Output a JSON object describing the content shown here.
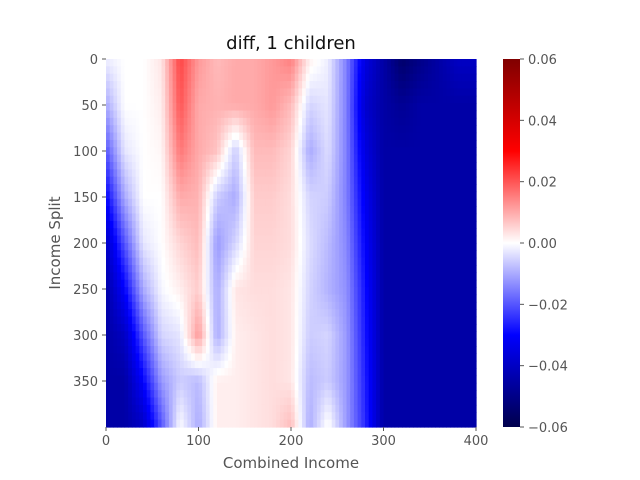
{
  "chart_data": {
    "type": "heatmap",
    "title": "diff, 1 children",
    "xlabel": "Combined Income",
    "ylabel": "Income Split",
    "x_ticks": [
      "0",
      "100",
      "200",
      "300",
      "400"
    ],
    "x_tick_values": [
      0,
      100,
      200,
      300,
      400
    ],
    "y_ticks": [
      "0",
      "50",
      "100",
      "150",
      "200",
      "250",
      "300",
      "350"
    ],
    "y_tick_values": [
      0,
      50,
      100,
      150,
      200,
      250,
      300,
      350
    ],
    "x_range": [
      0,
      400
    ],
    "y_range": [
      0,
      400
    ],
    "y_inverted": true,
    "colormap": "seismic",
    "colormap_stops": [
      "#00004c",
      "#0000ff",
      "#ffffff",
      "#ff0000",
      "#800000"
    ],
    "color_range": [
      -0.06,
      0.06
    ],
    "colorbar_ticks": [
      "0.06",
      "0.04",
      "0.02",
      "0.00",
      "−0.02",
      "−0.04",
      "−0.06"
    ],
    "colorbar_tick_values": [
      0.06,
      0.04,
      0.02,
      0.0,
      -0.02,
      -0.04,
      -0.06
    ],
    "x_centers": [
      0,
      20,
      40,
      60,
      80,
      100,
      120,
      140,
      160,
      180,
      200,
      220,
      240,
      260,
      280,
      300,
      320,
      340,
      360,
      380,
      400
    ],
    "y_centers": [
      0,
      50,
      100,
      150,
      200,
      250,
      300,
      350,
      400
    ],
    "values": [
      [
        -0.002,
        0.0,
        0.0,
        0.003,
        0.022,
        0.012,
        0.008,
        0.01,
        0.01,
        0.012,
        0.015,
        0.002,
        -0.002,
        -0.015,
        -0.035,
        -0.045,
        -0.055,
        -0.05,
        -0.045,
        -0.04,
        -0.04
      ],
      [
        -0.01,
        0.0,
        0.0,
        0.002,
        0.02,
        0.01,
        0.009,
        0.01,
        0.01,
        0.012,
        0.008,
        -0.005,
        -0.003,
        -0.015,
        -0.038,
        -0.045,
        -0.048,
        -0.045,
        -0.045,
        -0.045,
        -0.045
      ],
      [
        -0.02,
        -0.003,
        0.0,
        0.001,
        0.016,
        0.01,
        0.007,
        -0.006,
        0.008,
        0.008,
        0.005,
        -0.01,
        -0.004,
        -0.015,
        -0.035,
        -0.045,
        -0.045,
        -0.045,
        -0.045,
        -0.045,
        -0.045
      ],
      [
        -0.03,
        -0.01,
        0.0,
        0.0,
        0.01,
        0.009,
        -0.006,
        -0.01,
        0.006,
        0.006,
        0.004,
        -0.005,
        -0.006,
        -0.015,
        -0.032,
        -0.045,
        -0.045,
        -0.045,
        -0.045,
        -0.045,
        -0.045
      ],
      [
        -0.04,
        -0.02,
        -0.003,
        0.0,
        0.005,
        0.008,
        -0.012,
        -0.005,
        0.005,
        0.005,
        0.004,
        -0.004,
        -0.008,
        -0.014,
        -0.03,
        -0.045,
        -0.045,
        -0.045,
        -0.045,
        -0.045,
        -0.045
      ],
      [
        -0.045,
        -0.03,
        -0.01,
        -0.001,
        0.002,
        0.006,
        -0.01,
        0.003,
        0.004,
        0.004,
        0.003,
        -0.005,
        -0.009,
        -0.013,
        -0.028,
        -0.045,
        -0.045,
        -0.045,
        -0.045,
        -0.045,
        -0.045
      ],
      [
        -0.045,
        -0.04,
        -0.02,
        -0.005,
        -0.003,
        0.012,
        -0.01,
        0.002,
        0.003,
        0.004,
        0.003,
        -0.006,
        -0.005,
        -0.012,
        -0.027,
        -0.045,
        -0.045,
        -0.045,
        -0.045,
        -0.045,
        -0.045
      ],
      [
        -0.045,
        -0.045,
        -0.03,
        -0.012,
        -0.006,
        -0.008,
        0.002,
        0.002,
        0.003,
        0.004,
        0.003,
        -0.008,
        -0.006,
        -0.012,
        -0.026,
        -0.045,
        -0.045,
        -0.045,
        -0.045,
        -0.045,
        -0.045
      ],
      [
        -0.045,
        -0.045,
        -0.04,
        -0.02,
        0.0,
        -0.01,
        0.002,
        0.002,
        0.003,
        0.004,
        0.008,
        -0.01,
        0.001,
        -0.012,
        -0.025,
        -0.045,
        -0.045,
        -0.045,
        -0.045,
        -0.045,
        -0.045
      ]
    ]
  }
}
